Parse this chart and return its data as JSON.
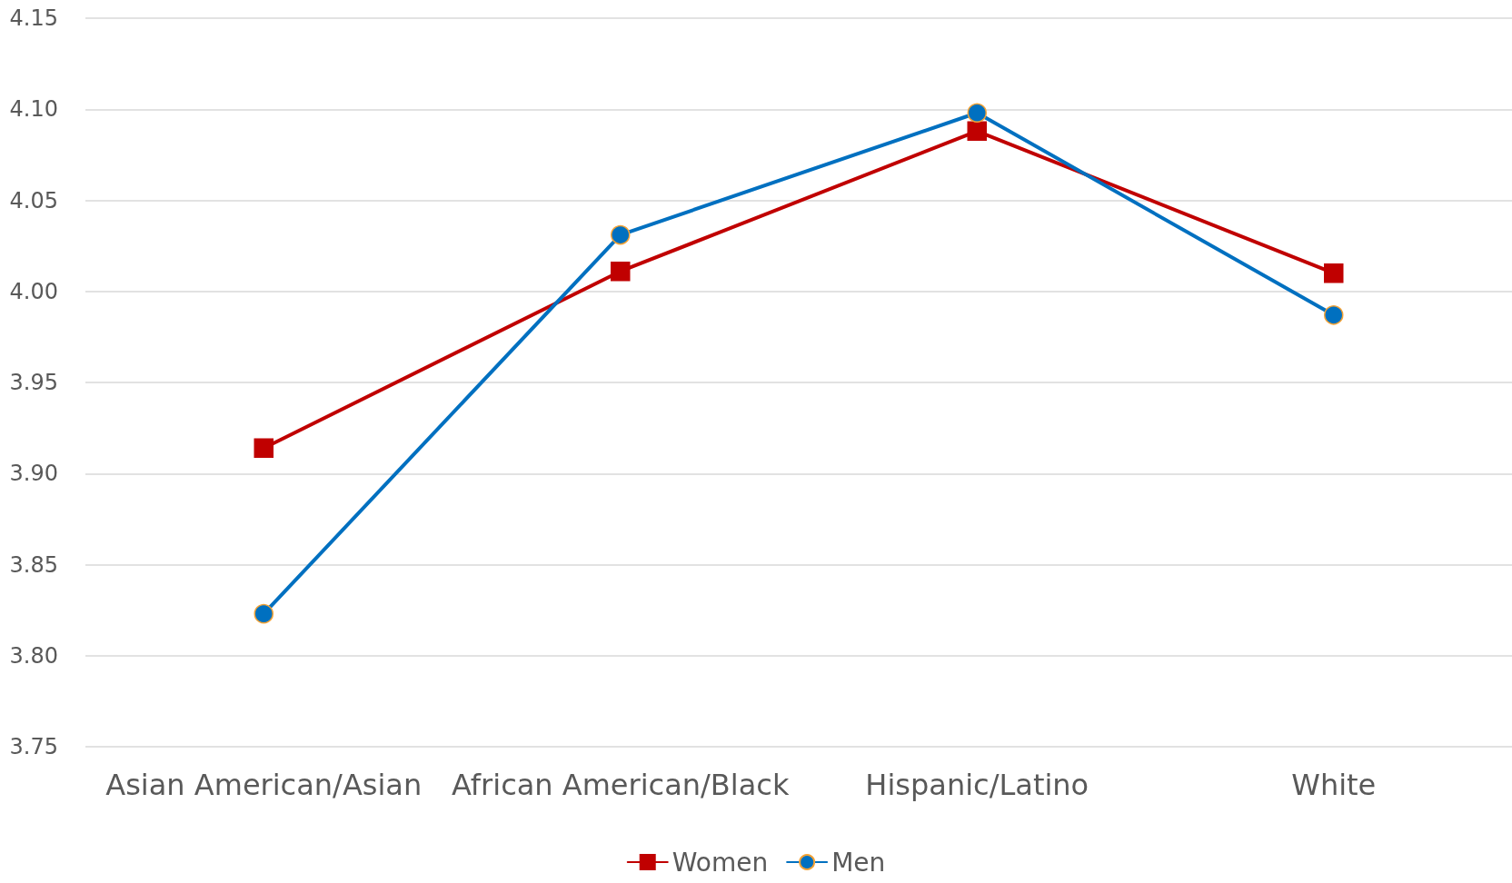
{
  "chart_data": {
    "type": "line",
    "categories": [
      "Asian American/Asian",
      "African American/Black",
      "Hispanic/Latino",
      "White"
    ],
    "series": [
      {
        "name": "Women",
        "color": "#c00000",
        "marker": "square",
        "values": [
          3.914,
          4.011,
          4.088,
          4.01
        ]
      },
      {
        "name": "Men",
        "color": "#0070c0",
        "marker": "circle",
        "values": [
          3.823,
          4.031,
          4.098,
          3.987
        ]
      }
    ],
    "ylim": [
      3.75,
      4.15
    ],
    "yticks": [
      3.75,
      {
        "value": 3.8,
        "label": "3.80"
      },
      3.85,
      {
        "value": 3.9,
        "label": "3.90"
      },
      3.95,
      {
        "value": 4.0,
        "label": "4.00"
      },
      4.05,
      {
        "value": 4.1,
        "label": "4.10"
      },
      4.15
    ],
    "grid": "y",
    "legend": "bottom",
    "line_style": "solid"
  }
}
